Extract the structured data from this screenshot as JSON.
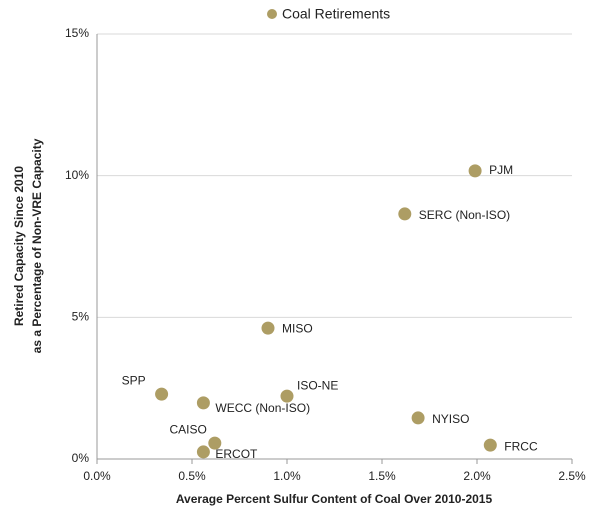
{
  "chart_data": {
    "type": "scatter",
    "legend": "Coal Retirements",
    "legend_position": "top",
    "x_label": "Average Percent Sulfur Content of Coal Over 2010-2015",
    "y_label": [
      "Retired Capacity Since 2010",
      "as a Percentage of Non-VRE Capacity"
    ],
    "color": "#ad9d64",
    "point_labels": [
      "SPP",
      "WECC (Non-ISO)",
      "ISO-NE",
      "CAISO",
      "ERCOT",
      "MISO",
      "SERC (Non-ISO)",
      "PJM",
      "NYISO",
      "FRCC"
    ],
    "x": [
      0.34,
      0.56,
      1.0,
      0.62,
      0.56,
      0.9,
      1.62,
      1.99,
      1.69,
      2.07
    ],
    "values": [
      2.29,
      1.98,
      2.22,
      0.56,
      0.25,
      4.62,
      8.65,
      10.17,
      1.45,
      0.49
    ],
    "xlim": [
      0,
      2.5
    ],
    "xticks": [
      {
        "value": 0,
        "label": "0.0%"
      },
      {
        "value": 0.5,
        "label": "0.5%"
      },
      {
        "value": 1,
        "label": "1.0%"
      },
      {
        "value": 1.5,
        "label": "1.5%"
      },
      {
        "value": 2,
        "label": "2.0%"
      },
      {
        "value": 2.5,
        "label": "2.5%"
      }
    ],
    "ylim": [
      0,
      15
    ],
    "yticks": [
      {
        "value": 0,
        "label": "0%"
      },
      {
        "value": 5,
        "label": "5%"
      },
      {
        "value": 10,
        "label": "10%"
      },
      {
        "value": 15,
        "label": "15%"
      }
    ],
    "grid": true
  }
}
